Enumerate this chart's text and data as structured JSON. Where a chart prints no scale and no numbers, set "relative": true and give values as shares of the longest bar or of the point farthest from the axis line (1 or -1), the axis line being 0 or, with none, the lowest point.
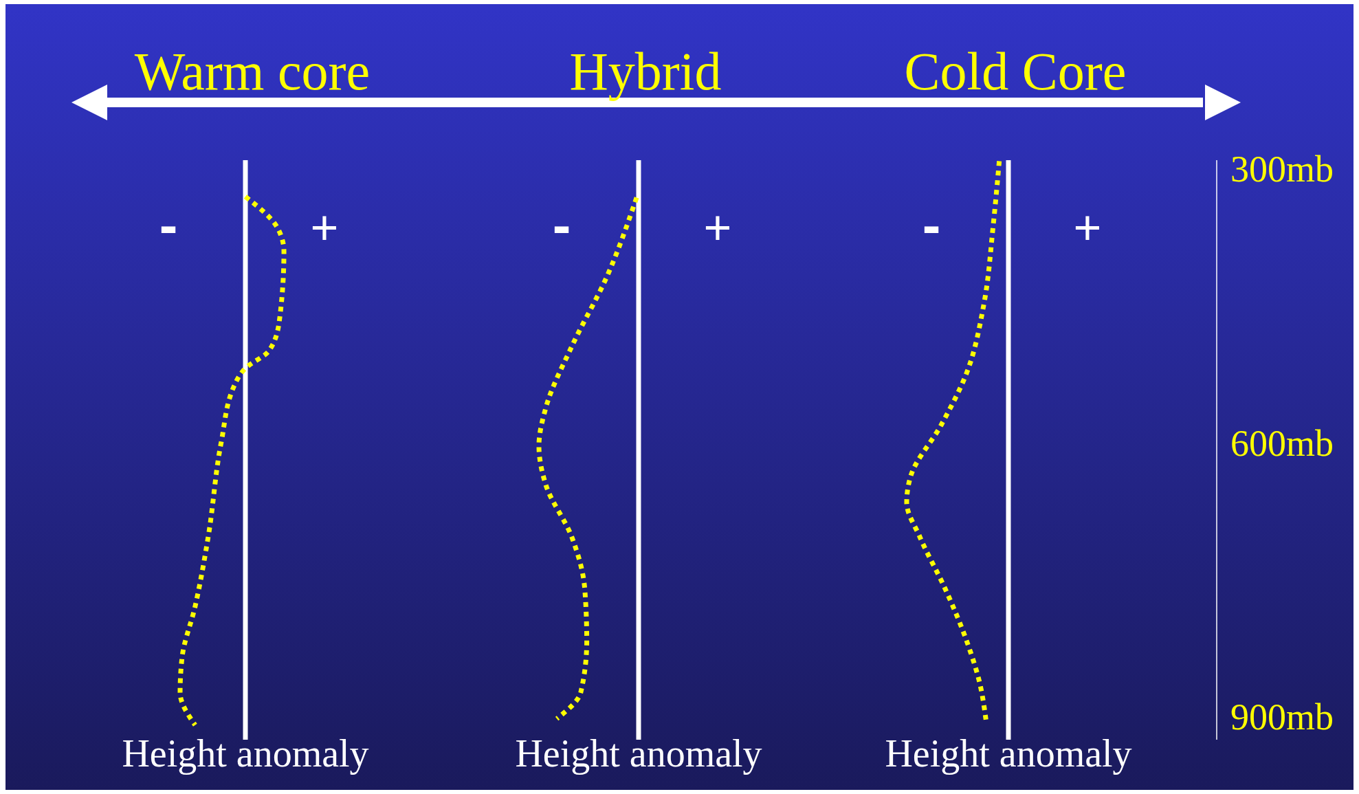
{
  "chart_data": [
    {
      "type": "line",
      "title": "Warm core",
      "xlabel": "Height anomaly",
      "relative": true,
      "orientation": "horizontal",
      "line_style": "dotted",
      "ylim": [
        925,
        290
      ],
      "tick_labels": false,
      "annotations": [
        "-",
        "+"
      ],
      "x": [
        330,
        364,
        390,
        466,
        499,
        518,
        537,
        599,
        703,
        779,
        835,
        873,
        909
      ],
      "series": [
        {
          "color": "#ffff00",
          "values": [
            0,
            0.49,
            0.59,
            0.52,
            0.36,
            0,
            -0.17,
            -0.37,
            -0.57,
            -0.77,
            -0.97,
            -1,
            -0.77
          ]
        }
      ]
    },
    {
      "type": "line",
      "title": "Hybrid",
      "xlabel": "Height anomaly",
      "relative": true,
      "orientation": "horizontal",
      "line_style": "dotted",
      "ylim": [
        925,
        290
      ],
      "tick_labels": false,
      "annotations": [
        "-",
        "+"
      ],
      "x": [
        331,
        418,
        494,
        561,
        603,
        646,
        703,
        760,
        817,
        873,
        902
      ],
      "series": [
        {
          "color": "#ffff00",
          "values": [
            -0.02,
            -0.32,
            -0.67,
            -0.93,
            -1,
            -0.93,
            -0.67,
            -0.54,
            -0.52,
            -0.58,
            -0.82
          ]
        }
      ]
    },
    {
      "type": "line",
      "title": "Cold Core",
      "xlabel": "Height anomaly",
      "relative": true,
      "orientation": "horizontal",
      "line_style": "dotted",
      "ylim": [
        925,
        290
      ],
      "yticks": [
        {
          "value": 300,
          "label": "300mb"
        },
        {
          "value": 600,
          "label": "600mb"
        },
        {
          "value": 900,
          "label": "900mb"
        }
      ],
      "tick_labels": "y",
      "annotations": [
        "-",
        "+"
      ],
      "x": [
        291,
        362,
        447,
        523,
        580,
        636,
        665,
        703,
        760,
        817,
        864,
        904
      ],
      "series": [
        {
          "color": "#ffff00",
          "values": [
            -0.09,
            -0.15,
            -0.24,
            -0.41,
            -0.66,
            -0.96,
            -1,
            -0.87,
            -0.62,
            -0.41,
            -0.28,
            -0.22
          ]
        }
      ]
    }
  ]
}
